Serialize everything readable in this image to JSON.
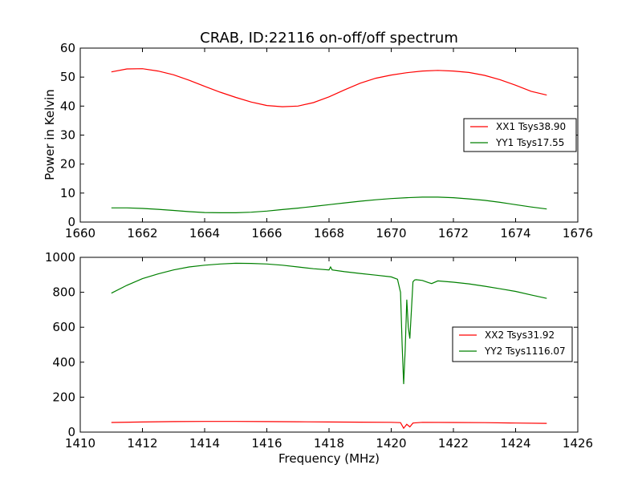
{
  "chart_data": [
    {
      "type": "line",
      "title": "CRAB, ID:22116 on-off/off spectrum",
      "xlabel": "",
      "ylabel": "Power in Kelvin",
      "xlim": [
        1660,
        1676
      ],
      "ylim": [
        0,
        60
      ],
      "xticks": [
        "1660",
        "1662",
        "1664",
        "1666",
        "1668",
        "1670",
        "1672",
        "1674",
        "1676"
      ],
      "yticks": [
        "0",
        "10",
        "20",
        "30",
        "40",
        "50",
        "60"
      ],
      "legend_position": "center-right",
      "series": [
        {
          "name": "XX1 Tsys38.90",
          "color": "#ff0000",
          "x": [
            1661,
            1661.5,
            1662,
            1662.5,
            1663,
            1663.5,
            1664,
            1664.5,
            1665,
            1665.5,
            1666,
            1666.5,
            1667,
            1667.5,
            1668,
            1668.5,
            1669,
            1669.5,
            1670,
            1670.5,
            1671,
            1671.5,
            1672,
            1672.5,
            1673,
            1673.5,
            1674,
            1674.5,
            1675
          ],
          "values": [
            51.8,
            52.8,
            52.9,
            52.1,
            50.8,
            48.9,
            46.8,
            44.8,
            43.0,
            41.4,
            40.2,
            39.8,
            40.0,
            41.2,
            43.2,
            45.6,
            47.9,
            49.6,
            50.7,
            51.5,
            52.1,
            52.3,
            52.1,
            51.6,
            50.6,
            49.1,
            47.2,
            45.1,
            43.8
          ]
        },
        {
          "name": "YY1 Tsys17.55",
          "color": "#008000",
          "x": [
            1661,
            1661.5,
            1662,
            1662.5,
            1663,
            1663.5,
            1664,
            1664.5,
            1665,
            1665.5,
            1666,
            1666.5,
            1667,
            1667.5,
            1668,
            1668.5,
            1669,
            1669.5,
            1670,
            1670.5,
            1671,
            1671.5,
            1672,
            1672.5,
            1673,
            1673.5,
            1674,
            1674.5,
            1675
          ],
          "values": [
            4.9,
            4.9,
            4.7,
            4.4,
            4.0,
            3.6,
            3.3,
            3.2,
            3.2,
            3.4,
            3.8,
            4.3,
            4.8,
            5.4,
            6.0,
            6.6,
            7.2,
            7.7,
            8.1,
            8.4,
            8.6,
            8.6,
            8.4,
            8.0,
            7.5,
            6.8,
            6.0,
            5.2,
            4.5
          ]
        }
      ]
    },
    {
      "type": "line",
      "title": "",
      "xlabel": "Frequency (MHz)",
      "ylabel": "",
      "xlim": [
        1410,
        1426
      ],
      "ylim": [
        0,
        1000
      ],
      "xticks": [
        "1410",
        "1412",
        "1414",
        "1416",
        "1418",
        "1420",
        "1422",
        "1424",
        "1426"
      ],
      "yticks": [
        "0",
        "200",
        "400",
        "600",
        "800",
        "1000"
      ],
      "legend_position": "center-right",
      "series": [
        {
          "name": "XX2 Tsys31.92",
          "color": "#ff0000",
          "x": [
            1411,
            1412,
            1413,
            1414,
            1415,
            1416,
            1417,
            1418,
            1419,
            1420,
            1420.3,
            1420.4,
            1420.5,
            1420.6,
            1420.7,
            1421,
            1422,
            1423,
            1424,
            1425
          ],
          "values": [
            55,
            58,
            60,
            61,
            61,
            60,
            59,
            58,
            57,
            56,
            54,
            22,
            45,
            30,
            52,
            56,
            55,
            54,
            52,
            50
          ]
        },
        {
          "name": "YY2 Tsys1116.07",
          "color": "#008000",
          "x": [
            1411,
            1411.5,
            1412,
            1412.5,
            1413,
            1413.5,
            1414,
            1414.5,
            1415,
            1415.5,
            1416,
            1416.5,
            1417,
            1417.5,
            1418,
            1418.05,
            1418.1,
            1418.5,
            1419,
            1419.5,
            1420,
            1420.2,
            1420.3,
            1420.35,
            1420.4,
            1420.45,
            1420.5,
            1420.55,
            1420.6,
            1420.65,
            1420.7,
            1420.75,
            1420.8,
            1421,
            1421.2,
            1421.3,
            1421.5,
            1422,
            1422.5,
            1423,
            1423.5,
            1424,
            1424.5,
            1425
          ],
          "values": [
            795,
            840,
            878,
            905,
            928,
            945,
            955,
            962,
            966,
            965,
            962,
            955,
            945,
            935,
            928,
            945,
            928,
            918,
            908,
            898,
            888,
            875,
            800,
            500,
            275,
            470,
            758,
            600,
            535,
            700,
            860,
            870,
            872,
            868,
            855,
            850,
            865,
            858,
            848,
            835,
            820,
            805,
            785,
            765
          ]
        }
      ]
    }
  ]
}
